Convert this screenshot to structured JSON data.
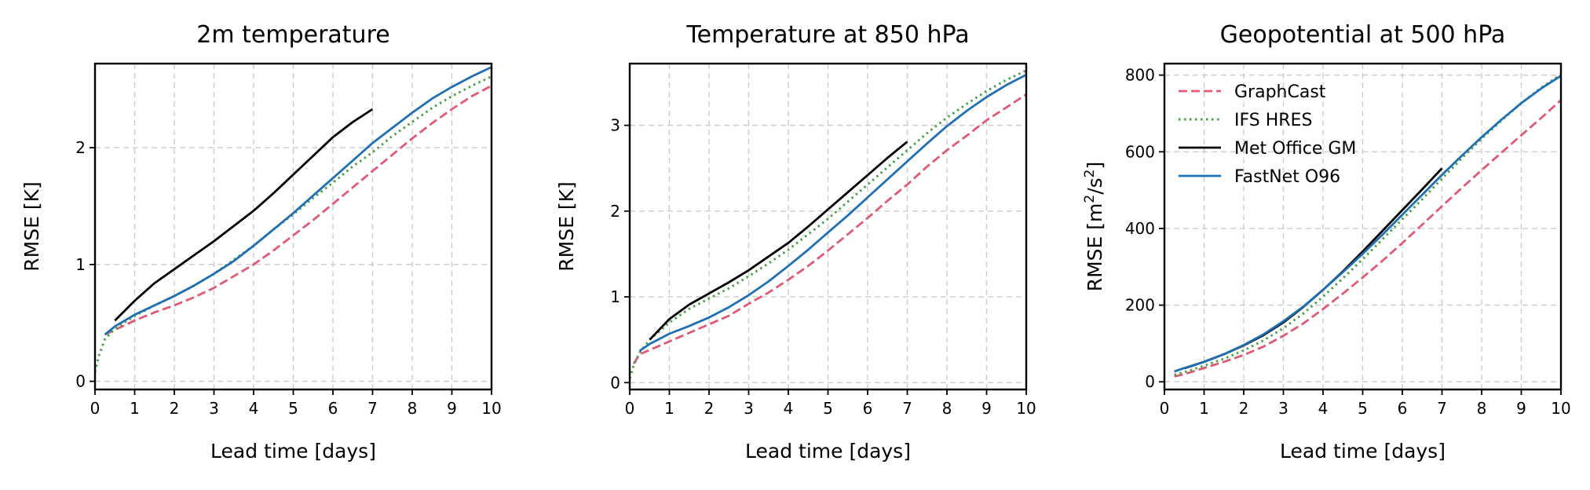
{
  "chart_data": [
    {
      "type": "line",
      "title": "2m temperature",
      "xlabel": "Lead time [days]",
      "ylabel": "RMSE [K]",
      "xlim": [
        0,
        10
      ],
      "ylim": [
        -0.07,
        2.72
      ],
      "xticks": [
        0,
        1,
        2,
        3,
        4,
        5,
        6,
        7,
        8,
        9,
        10
      ],
      "yticks": [
        0,
        1,
        2
      ],
      "grid": true,
      "legend": false,
      "series": [
        {
          "name": "GraphCast",
          "color": "#e05a75",
          "style": "dashed",
          "x": [
            0.25,
            0.5,
            1,
            1.5,
            2,
            2.5,
            3,
            3.5,
            4,
            4.5,
            5,
            5.5,
            6,
            6.5,
            7,
            7.5,
            8,
            8.5,
            9,
            9.5,
            10
          ],
          "y": [
            0.4,
            0.44,
            0.52,
            0.59,
            0.65,
            0.72,
            0.8,
            0.9,
            1.0,
            1.12,
            1.25,
            1.38,
            1.52,
            1.66,
            1.8,
            1.94,
            2.08,
            2.21,
            2.33,
            2.44,
            2.53
          ]
        },
        {
          "name": "IFS HRES",
          "color": "#4aa34a",
          "style": "dotted",
          "x": [
            0,
            0.1,
            0.25,
            0.5,
            1,
            1.5,
            2,
            2.5,
            3,
            3.5,
            4,
            4.5,
            5,
            5.5,
            6,
            6.5,
            7,
            7.5,
            8,
            8.5,
            9,
            9.5,
            10
          ],
          "y": [
            0.08,
            0.22,
            0.36,
            0.45,
            0.56,
            0.65,
            0.73,
            0.82,
            0.92,
            1.04,
            1.16,
            1.3,
            1.43,
            1.57,
            1.7,
            1.84,
            1.96,
            2.1,
            2.22,
            2.34,
            2.44,
            2.53,
            2.61
          ]
        },
        {
          "name": "Met Office GM",
          "color": "#000000",
          "style": "solid",
          "x": [
            0.5,
            1,
            1.5,
            2,
            2.5,
            3,
            3.5,
            4,
            4.5,
            5,
            5.5,
            6,
            6.5,
            7
          ],
          "y": [
            0.52,
            0.69,
            0.84,
            0.96,
            1.08,
            1.2,
            1.33,
            1.46,
            1.61,
            1.77,
            1.93,
            2.09,
            2.22,
            2.33
          ]
        },
        {
          "name": "FastNet O96",
          "color": "#1f6fb2",
          "style": "solid",
          "x": [
            0.25,
            0.5,
            1,
            1.5,
            2,
            2.5,
            3,
            3.5,
            4,
            4.5,
            5,
            5.5,
            6,
            6.5,
            7,
            7.5,
            8,
            8.5,
            9,
            9.5,
            10
          ],
          "y": [
            0.4,
            0.47,
            0.57,
            0.65,
            0.73,
            0.82,
            0.92,
            1.03,
            1.16,
            1.3,
            1.44,
            1.59,
            1.74,
            1.89,
            2.04,
            2.17,
            2.3,
            2.42,
            2.52,
            2.61,
            2.69
          ]
        }
      ]
    },
    {
      "type": "line",
      "title": "Temperature at 850 hPa",
      "xlabel": "Lead time [days]",
      "ylabel": "RMSE [K]",
      "xlim": [
        0,
        10
      ],
      "ylim": [
        -0.08,
        3.72
      ],
      "xticks": [
        0,
        1,
        2,
        3,
        4,
        5,
        6,
        7,
        8,
        9,
        10
      ],
      "yticks": [
        0,
        1,
        2,
        3
      ],
      "grid": true,
      "legend": false,
      "series": [
        {
          "name": "GraphCast",
          "color": "#e05a75",
          "style": "dashed",
          "x": [
            0.1,
            0.25,
            0.5,
            1,
            1.5,
            2,
            2.5,
            3,
            3.5,
            4,
            4.5,
            5,
            5.5,
            6,
            6.5,
            7,
            7.5,
            8,
            8.5,
            9,
            9.5,
            10
          ],
          "y": [
            0.22,
            0.33,
            0.38,
            0.48,
            0.58,
            0.68,
            0.78,
            0.92,
            1.05,
            1.2,
            1.36,
            1.54,
            1.73,
            1.92,
            2.12,
            2.31,
            2.52,
            2.71,
            2.88,
            3.06,
            3.21,
            3.36
          ]
        },
        {
          "name": "IFS HRES",
          "color": "#4aa34a",
          "style": "dotted",
          "x": [
            0,
            0.1,
            0.25,
            0.5,
            1,
            1.5,
            2,
            2.5,
            3,
            3.5,
            4,
            4.5,
            5,
            5.5,
            6,
            6.5,
            7,
            7.5,
            8,
            8.5,
            9,
            9.5,
            10
          ],
          "y": [
            0.05,
            0.2,
            0.35,
            0.5,
            0.7,
            0.86,
            0.98,
            1.1,
            1.24,
            1.39,
            1.55,
            1.73,
            1.91,
            2.11,
            2.31,
            2.51,
            2.71,
            2.91,
            3.09,
            3.25,
            3.4,
            3.53,
            3.64
          ]
        },
        {
          "name": "Met Office GM",
          "color": "#000000",
          "style": "solid",
          "x": [
            0.5,
            1,
            1.5,
            2,
            2.5,
            3,
            3.5,
            4,
            4.5,
            5,
            5.5,
            6,
            6.5,
            7
          ],
          "y": [
            0.5,
            0.74,
            0.91,
            1.04,
            1.17,
            1.31,
            1.47,
            1.63,
            1.82,
            2.02,
            2.22,
            2.42,
            2.62,
            2.81
          ]
        },
        {
          "name": "FastNet O96",
          "color": "#1f6fb2",
          "style": "solid",
          "x": [
            0.25,
            0.5,
            1,
            1.5,
            2,
            2.5,
            3,
            3.5,
            4,
            4.5,
            5,
            5.5,
            6,
            6.5,
            7,
            7.5,
            8,
            8.5,
            9,
            9.5,
            10
          ],
          "y": [
            0.37,
            0.45,
            0.57,
            0.66,
            0.76,
            0.88,
            1.02,
            1.18,
            1.36,
            1.55,
            1.75,
            1.95,
            2.16,
            2.37,
            2.58,
            2.79,
            2.99,
            3.17,
            3.33,
            3.47,
            3.59
          ]
        }
      ]
    },
    {
      "type": "line",
      "title": "Geopotential at 500 hPa",
      "xlabel": "Lead time [days]",
      "ylabel": "RMSE [m²/s²]",
      "ylabel_parts": {
        "base": "RMSE [m",
        "sup1": "2",
        "mid": "/s",
        "sup2": "2",
        "end": "]"
      },
      "xlim": [
        0,
        10
      ],
      "ylim": [
        -20,
        830
      ],
      "xticks": [
        0,
        1,
        2,
        3,
        4,
        5,
        6,
        7,
        8,
        9,
        10
      ],
      "yticks": [
        0,
        200,
        400,
        600,
        800
      ],
      "grid": true,
      "legend": true,
      "legend_loc": "upper-left",
      "series": [
        {
          "name": "GraphCast",
          "color": "#e05a75",
          "style": "dashed",
          "x": [
            0.25,
            0.5,
            1,
            1.5,
            2,
            2.5,
            3,
            3.5,
            4,
            4.5,
            5,
            5.5,
            6,
            6.5,
            7,
            7.5,
            8,
            8.5,
            9,
            9.5,
            10
          ],
          "y": [
            14,
            20,
            36,
            52,
            70,
            92,
            120,
            152,
            190,
            230,
            272,
            316,
            362,
            410,
            458,
            506,
            552,
            598,
            643,
            688,
            735
          ]
        },
        {
          "name": "IFS HRES",
          "color": "#4aa34a",
          "style": "dotted",
          "x": [
            0.25,
            0.5,
            1,
            1.5,
            2,
            2.5,
            3,
            3.5,
            4,
            4.5,
            5,
            5.5,
            6,
            6.5,
            7,
            7.5,
            8,
            8.5,
            9,
            9.5,
            10
          ],
          "y": [
            18,
            25,
            42,
            60,
            82,
            108,
            140,
            178,
            222,
            270,
            320,
            372,
            424,
            476,
            530,
            583,
            634,
            682,
            727,
            767,
            802
          ]
        },
        {
          "name": "Met Office GM",
          "color": "#000000",
          "style": "solid",
          "x": [
            0.5,
            1,
            1.5,
            2,
            2.5,
            3,
            3.5,
            4,
            4.5,
            5,
            5.5,
            6,
            6.5,
            7
          ],
          "y": [
            35,
            52,
            72,
            95,
            122,
            155,
            195,
            240,
            288,
            340,
            394,
            448,
            502,
            557
          ]
        },
        {
          "name": "FastNet O96",
          "color": "#1f6fb2",
          "style": "solid",
          "x": [
            0.25,
            0.5,
            1,
            1.5,
            2,
            2.5,
            3,
            3.5,
            4,
            4.5,
            5,
            5.5,
            6,
            6.5,
            7,
            7.5,
            8,
            8.5,
            9,
            9.5,
            10
          ],
          "y": [
            27,
            36,
            52,
            72,
            96,
            124,
            158,
            196,
            240,
            286,
            334,
            384,
            436,
            488,
            540,
            590,
            638,
            684,
            727,
            765,
            798
          ]
        }
      ]
    }
  ]
}
